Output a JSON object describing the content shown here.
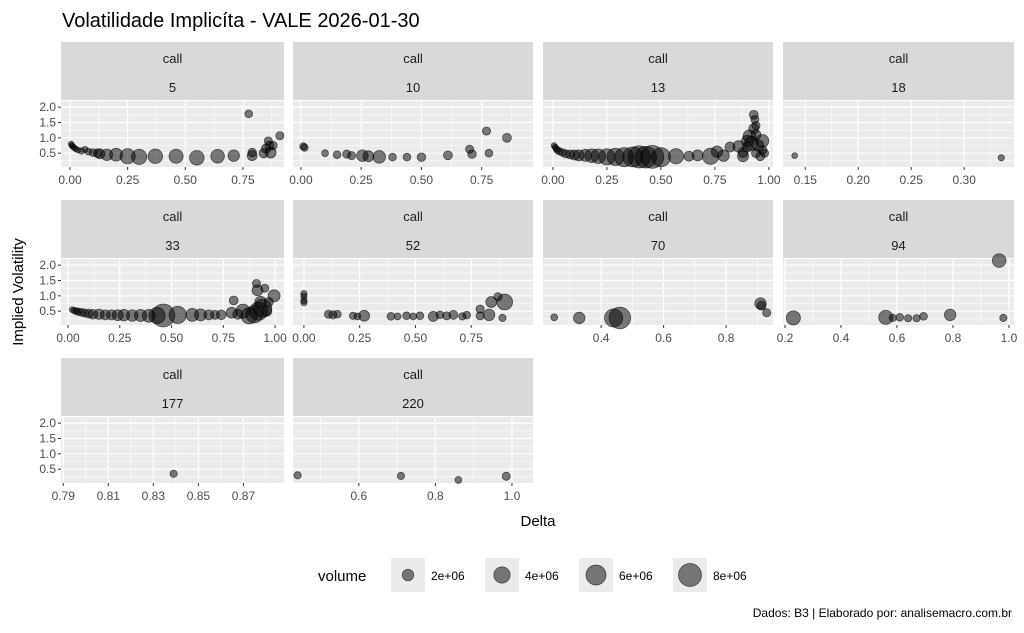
{
  "chart_data": {
    "type": "scatter",
    "title": "Volatilidade Implicíta - VALE 2026-01-30",
    "xlabel": "Delta",
    "ylabel": "Implied Volatility",
    "caption": "Dados: B3 | Elaborado por: analisemacro.com.br",
    "ylim": [
      0.05,
      2.2
    ],
    "y_ticks": [
      "0.5",
      "1.0",
      "1.5",
      "2.0"
    ],
    "grid": true,
    "point_color": "#000000",
    "point_alpha": 0.5,
    "panel_background": "#ebebeb",
    "strip_background": "#d9d9d9",
    "legend": {
      "title": "volume",
      "placement": "bottom",
      "entries": [
        {
          "label": "2e+06",
          "value": 2000000
        },
        {
          "label": "4e+06",
          "value": 4000000
        },
        {
          "label": "6e+06",
          "value": 6000000
        },
        {
          "label": "8e+06",
          "value": 8000000
        }
      ]
    },
    "facets": [
      {
        "type": "call",
        "days": "5",
        "xlim": [
          -0.039,
          0.928
        ],
        "x_ticks": [
          "0.00",
          "0.25",
          "0.50",
          "0.75"
        ],
        "points": [
          [
            0.005,
            0.8,
            300000
          ],
          [
            0.008,
            0.75,
            300000
          ],
          [
            0.012,
            0.72,
            300000
          ],
          [
            0.018,
            0.68,
            300000
          ],
          [
            0.025,
            0.64,
            400000
          ],
          [
            0.035,
            0.6,
            500000
          ],
          [
            0.05,
            0.57,
            600000
          ],
          [
            0.065,
            0.62,
            600000
          ],
          [
            0.08,
            0.55,
            700000
          ],
          [
            0.1,
            0.52,
            900000
          ],
          [
            0.12,
            0.5,
            1200000
          ],
          [
            0.13,
            0.48,
            1500000
          ],
          [
            0.16,
            0.45,
            2000000
          ],
          [
            0.2,
            0.45,
            2500000
          ],
          [
            0.25,
            0.4,
            3500000
          ],
          [
            0.3,
            0.38,
            3500000
          ],
          [
            0.37,
            0.4,
            3200000
          ],
          [
            0.46,
            0.4,
            3000000
          ],
          [
            0.55,
            0.35,
            3200000
          ],
          [
            0.64,
            0.4,
            2800000
          ],
          [
            0.71,
            0.42,
            2000000
          ],
          [
            0.775,
            1.78,
            900000
          ],
          [
            0.79,
            0.52,
            1100000
          ],
          [
            0.79,
            0.42,
            1500000
          ],
          [
            0.84,
            0.5,
            1300000
          ],
          [
            0.85,
            0.65,
            1300000
          ],
          [
            0.86,
            0.9,
            1000000
          ],
          [
            0.865,
            0.75,
            1200000
          ],
          [
            0.88,
            0.75,
            1100000
          ],
          [
            0.87,
            0.52,
            1800000
          ],
          [
            0.91,
            1.07,
            1000000
          ]
        ]
      },
      {
        "type": "call",
        "days": "10",
        "xlim": [
          -0.033,
          0.963
        ],
        "x_ticks": [
          "0.00",
          "0.25",
          "0.50",
          "0.75"
        ],
        "points": [
          [
            0.01,
            0.72,
            800000
          ],
          [
            0.015,
            0.68,
            800000
          ],
          [
            0.1,
            0.5,
            700000
          ],
          [
            0.15,
            0.45,
            900000
          ],
          [
            0.19,
            0.47,
            1000000
          ],
          [
            0.21,
            0.42,
            1000000
          ],
          [
            0.255,
            0.42,
            2000000
          ],
          [
            0.28,
            0.4,
            1800000
          ],
          [
            0.325,
            0.38,
            2400000
          ],
          [
            0.38,
            0.37,
            900000
          ],
          [
            0.44,
            0.37,
            900000
          ],
          [
            0.5,
            0.37,
            1100000
          ],
          [
            0.61,
            0.43,
            1200000
          ],
          [
            0.7,
            0.63,
            1000000
          ],
          [
            0.71,
            0.47,
            1100000
          ],
          [
            0.77,
            1.22,
            1000000
          ],
          [
            0.78,
            0.5,
            900000
          ],
          [
            0.855,
            1.0,
            1200000
          ]
        ]
      },
      {
        "type": "call",
        "days": "13",
        "xlim": [
          -0.046,
          1.019
        ],
        "x_ticks": [
          "0.00",
          "0.25",
          "0.50",
          "0.75",
          "1.00"
        ],
        "points": [
          [
            0.005,
            0.75,
            500000
          ],
          [
            0.01,
            0.7,
            500000
          ],
          [
            0.015,
            0.65,
            600000
          ],
          [
            0.02,
            0.6,
            700000
          ],
          [
            0.03,
            0.56,
            800000
          ],
          [
            0.045,
            0.52,
            900000
          ],
          [
            0.06,
            0.48,
            1000000
          ],
          [
            0.08,
            0.46,
            1200000
          ],
          [
            0.1,
            0.44,
            1500000
          ],
          [
            0.12,
            0.43,
            1800000
          ],
          [
            0.15,
            0.43,
            2200000
          ],
          [
            0.18,
            0.42,
            2800000
          ],
          [
            0.21,
            0.4,
            3200000
          ],
          [
            0.25,
            0.38,
            4000000
          ],
          [
            0.29,
            0.38,
            4500000
          ],
          [
            0.33,
            0.37,
            5500000
          ],
          [
            0.37,
            0.38,
            6000000
          ],
          [
            0.4,
            0.38,
            7500000
          ],
          [
            0.43,
            0.37,
            7000000
          ],
          [
            0.46,
            0.38,
            8000000
          ],
          [
            0.5,
            0.37,
            5500000
          ],
          [
            0.57,
            0.4,
            3500000
          ],
          [
            0.63,
            0.4,
            1500000
          ],
          [
            0.67,
            0.43,
            1800000
          ],
          [
            0.73,
            0.4,
            4000000
          ],
          [
            0.76,
            0.55,
            2000000
          ],
          [
            0.79,
            0.42,
            2000000
          ],
          [
            0.82,
            0.7,
            1500000
          ],
          [
            0.86,
            0.72,
            2000000
          ],
          [
            0.88,
            0.4,
            1800000
          ],
          [
            0.88,
            0.52,
            1500000
          ],
          [
            0.9,
            0.9,
            2000000
          ],
          [
            0.9,
            0.7,
            1500000
          ],
          [
            0.91,
            1.05,
            2500000
          ],
          [
            0.92,
            0.82,
            3000000
          ],
          [
            0.93,
            1.3,
            1500000
          ],
          [
            0.93,
            1.75,
            1200000
          ],
          [
            0.935,
            1.6,
            1000000
          ],
          [
            0.94,
            1.4,
            1000000
          ],
          [
            0.94,
            1.1,
            1500000
          ],
          [
            0.94,
            0.5,
            1200000
          ],
          [
            0.95,
            0.75,
            2000000
          ],
          [
            0.96,
            0.4,
            1200000
          ],
          [
            0.97,
            0.9,
            2500000
          ],
          [
            0.97,
            0.6,
            1200000
          ],
          [
            0.98,
            0.5,
            1000000
          ]
        ]
      },
      {
        "type": "call",
        "days": "18",
        "xlim": [
          0.129,
          0.347
        ],
        "x_ticks": [
          "0.15",
          "0.20",
          "0.25",
          "0.30"
        ],
        "points": [
          [
            0.14,
            0.42,
            500000
          ],
          [
            0.335,
            0.35,
            600000
          ]
        ]
      },
      {
        "type": "call",
        "days": "33",
        "xlim": [
          -0.034,
          1.043
        ],
        "x_ticks": [
          "0.00",
          "0.25",
          "0.50",
          "0.75",
          "1.00"
        ],
        "points": [
          [
            0.02,
            0.55,
            500000
          ],
          [
            0.03,
            0.52,
            600000
          ],
          [
            0.04,
            0.5,
            700000
          ],
          [
            0.05,
            0.48,
            800000
          ],
          [
            0.065,
            0.46,
            900000
          ],
          [
            0.08,
            0.44,
            1000000
          ],
          [
            0.1,
            0.42,
            1200000
          ],
          [
            0.12,
            0.4,
            1400000
          ],
          [
            0.15,
            0.4,
            1600000
          ],
          [
            0.18,
            0.38,
            1500000
          ],
          [
            0.21,
            0.38,
            1500000
          ],
          [
            0.24,
            0.37,
            1800000
          ],
          [
            0.27,
            0.37,
            2000000
          ],
          [
            0.31,
            0.36,
            2000000
          ],
          [
            0.35,
            0.36,
            2200000
          ],
          [
            0.39,
            0.35,
            2500000
          ],
          [
            0.43,
            0.36,
            4000000
          ],
          [
            0.46,
            0.36,
            8000000
          ],
          [
            0.53,
            0.38,
            4500000
          ],
          [
            0.6,
            0.38,
            2500000
          ],
          [
            0.64,
            0.38,
            2200000
          ],
          [
            0.68,
            0.38,
            1500000
          ],
          [
            0.71,
            0.38,
            1200000
          ],
          [
            0.74,
            0.38,
            1400000
          ],
          [
            0.79,
            0.45,
            1800000
          ],
          [
            0.8,
            0.85,
            1200000
          ],
          [
            0.82,
            0.4,
            1500000
          ],
          [
            0.845,
            0.5,
            3000000
          ],
          [
            0.875,
            0.35,
            4000000
          ],
          [
            0.9,
            0.4,
            4500000
          ],
          [
            0.91,
            1.4,
            1000000
          ],
          [
            0.915,
            1.18,
            1800000
          ],
          [
            0.92,
            0.5,
            5000000
          ],
          [
            0.93,
            0.8,
            2000000
          ],
          [
            0.94,
            0.6,
            5000000
          ],
          [
            0.95,
            1.25,
            1000000
          ],
          [
            0.96,
            0.5,
            1500000
          ],
          [
            0.97,
            0.8,
            1200000
          ],
          [
            0.995,
            1.0,
            2200000
          ]
        ]
      },
      {
        "type": "call",
        "days": "52",
        "xlim": [
          -0.049,
          1.027
        ],
        "x_ticks": [
          "0.00",
          "0.25",
          "0.50",
          "0.75"
        ],
        "points": [
          [
            0,
            1.07,
            600000
          ],
          [
            0,
            0.98,
            600000
          ],
          [
            0,
            0.85,
            600000
          ],
          [
            0,
            0.78,
            600000
          ],
          [
            0.11,
            0.4,
            1000000
          ],
          [
            0.13,
            0.38,
            1000000
          ],
          [
            0.15,
            0.4,
            900000
          ],
          [
            0.22,
            0.35,
            800000
          ],
          [
            0.24,
            0.33,
            700000
          ],
          [
            0.27,
            0.35,
            1800000
          ],
          [
            0.39,
            0.33,
            900000
          ],
          [
            0.42,
            0.33,
            700000
          ],
          [
            0.46,
            0.35,
            900000
          ],
          [
            0.49,
            0.33,
            700000
          ],
          [
            0.52,
            0.35,
            900000
          ],
          [
            0.58,
            0.33,
            1500000
          ],
          [
            0.61,
            0.38,
            900000
          ],
          [
            0.64,
            0.35,
            1000000
          ],
          [
            0.67,
            0.38,
            1200000
          ],
          [
            0.71,
            0.33,
            800000
          ],
          [
            0.73,
            0.37,
            900000
          ],
          [
            0.79,
            0.57,
            1000000
          ],
          [
            0.79,
            0.35,
            1000000
          ],
          [
            0.83,
            0.38,
            2000000
          ],
          [
            0.84,
            0.8,
            1800000
          ],
          [
            0.87,
            0.97,
            1000000
          ],
          [
            0.9,
            0.8,
            3800000
          ],
          [
            0.89,
            0.28,
            800000
          ]
        ]
      },
      {
        "type": "call",
        "days": "70",
        "xlim": [
          0.214,
          0.95
        ],
        "x_ticks": [
          "0.4",
          "0.6",
          "0.8"
        ],
        "points": [
          [
            0.25,
            0.3,
            700000
          ],
          [
            0.33,
            0.28,
            2000000
          ],
          [
            0.44,
            0.28,
            5000000
          ],
          [
            0.46,
            0.28,
            7000000
          ],
          [
            0.91,
            0.75,
            2000000
          ],
          [
            0.913,
            0.68,
            1200000
          ],
          [
            0.93,
            0.45,
            1000000
          ]
        ]
      },
      {
        "type": "call",
        "days": "94",
        "xlim": [
          0.193,
          1.018
        ],
        "x_ticks": [
          "0.2",
          "0.4",
          "0.6",
          "0.8",
          "1.0"
        ],
        "points": [
          [
            0.23,
            0.28,
            3000000
          ],
          [
            0.56,
            0.3,
            3000000
          ],
          [
            0.585,
            0.28,
            800000
          ],
          [
            0.61,
            0.3,
            900000
          ],
          [
            0.64,
            0.27,
            800000
          ],
          [
            0.67,
            0.27,
            800000
          ],
          [
            0.695,
            0.33,
            900000
          ],
          [
            0.79,
            0.38,
            2000000
          ],
          [
            0.965,
            2.15,
            2800000
          ],
          [
            0.98,
            0.28,
            800000
          ]
        ]
      },
      {
        "type": "call",
        "days": "177",
        "xlim": [
          0.789,
          0.888
        ],
        "x_ticks": [
          "0.79",
          "0.81",
          "0.83",
          "0.85",
          "0.87"
        ],
        "points": [
          [
            0.839,
            0.35,
            800000
          ]
        ]
      },
      {
        "type": "call",
        "days": "220",
        "xlim": [
          0.428,
          1.055
        ],
        "x_ticks": [
          "0.6",
          "0.8",
          "1.0"
        ],
        "points": [
          [
            0.44,
            0.3,
            800000
          ],
          [
            0.71,
            0.28,
            800000
          ],
          [
            0.86,
            0.15,
            700000
          ],
          [
            0.985,
            0.27,
            1000000
          ]
        ]
      }
    ]
  }
}
